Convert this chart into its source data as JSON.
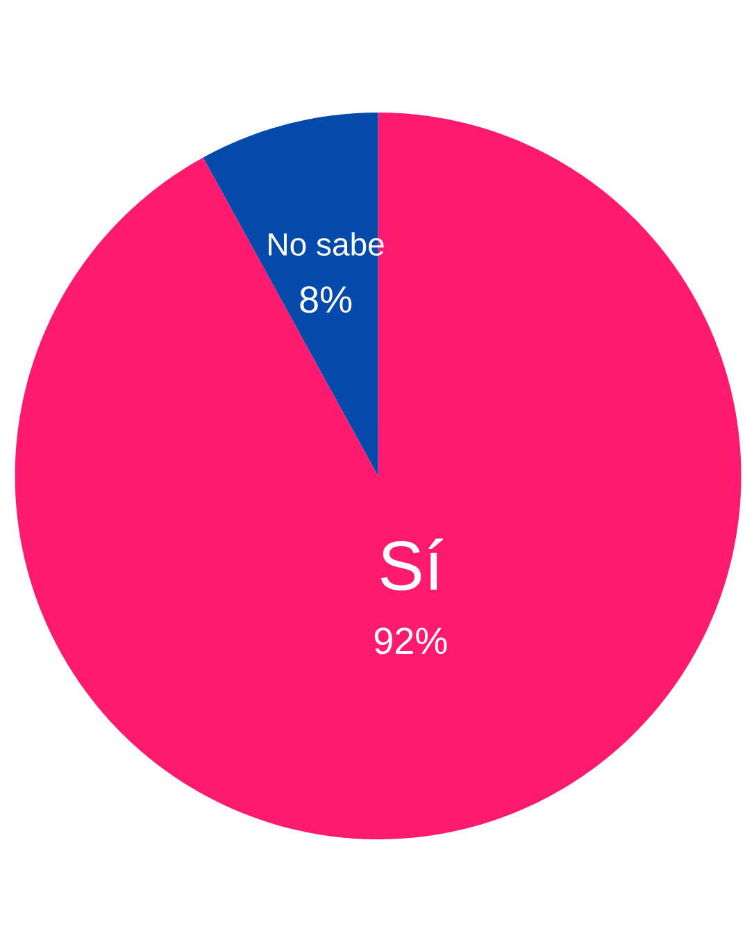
{
  "chart_data": {
    "type": "pie",
    "categories": [
      "Sí",
      "No sabe"
    ],
    "values": [
      92,
      8
    ],
    "colors": [
      "#fe1a6f",
      "#034aab"
    ],
    "value_labels": [
      "92%",
      "8%"
    ]
  }
}
